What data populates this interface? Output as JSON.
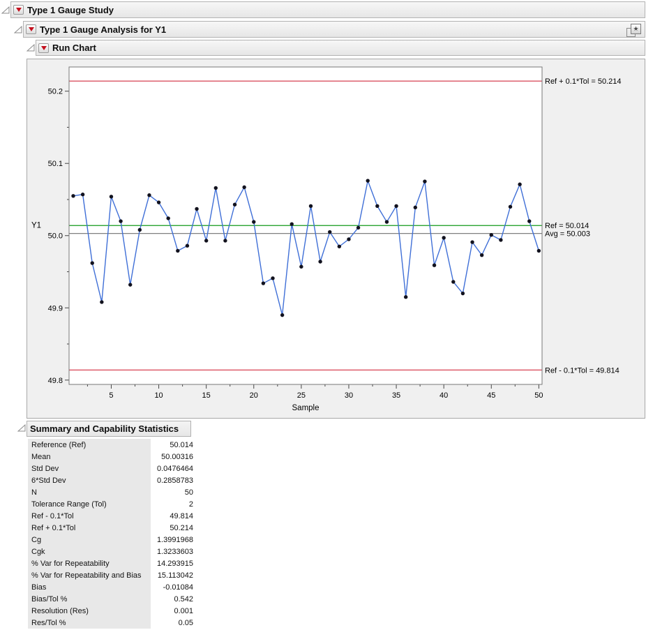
{
  "outlines": {
    "study": {
      "title": "Type 1 Gauge Study"
    },
    "analysis": {
      "title": "Type 1 Gauge Analysis for Y1"
    },
    "run_chart": {
      "title": "Run Chart"
    },
    "summary": {
      "title": "Summary and Capability Statistics"
    }
  },
  "icons": {
    "red_triangle_menu": "red-triangle-menu",
    "disclosure": "disclosure-triangle",
    "doc_star": "report-navigation-icon",
    "doc_star_glyph": "★"
  },
  "chart_data": {
    "type": "line",
    "title": "",
    "xlabel": "Sample",
    "ylabel": "Y1",
    "legend": "none",
    "grid": false,
    "xlim": [
      0.56,
      50.34
    ],
    "ylim": [
      49.794,
      50.2335
    ],
    "x": [
      1,
      2,
      3,
      4,
      5,
      6,
      7,
      8,
      9,
      10,
      11,
      12,
      13,
      14,
      15,
      16,
      17,
      18,
      19,
      20,
      21,
      22,
      23,
      24,
      25,
      26,
      27,
      28,
      29,
      30,
      31,
      32,
      33,
      34,
      35,
      36,
      37,
      38,
      39,
      40,
      41,
      42,
      43,
      44,
      45,
      46,
      47,
      48,
      49,
      50
    ],
    "values": [
      50.055,
      50.057,
      49.962,
      49.908,
      50.054,
      50.02,
      49.932,
      50.008,
      50.056,
      50.046,
      50.024,
      49.979,
      49.986,
      50.037,
      49.993,
      50.066,
      49.993,
      50.043,
      50.067,
      50.019,
      49.934,
      49.941,
      49.89,
      50.016,
      49.957,
      50.041,
      49.964,
      50.005,
      49.985,
      49.995,
      50.011,
      50.076,
      50.041,
      50.019,
      50.041,
      49.915,
      50.039,
      50.075,
      49.959,
      49.997,
      49.936,
      49.92,
      49.991,
      49.973,
      50.001,
      49.994,
      50.04,
      50.071,
      50.02,
      49.979
    ],
    "ytick_labels": [
      "49.8",
      "49.9",
      "50.0",
      "50.1",
      "50.2"
    ],
    "ytick_values": [
      49.8,
      49.9,
      50.0,
      50.1,
      50.2
    ],
    "ytick_minor": [
      49.85,
      49.95,
      50.05,
      50.15
    ],
    "xtick_labels": [
      "5",
      "10",
      "15",
      "20",
      "25",
      "30",
      "35",
      "40",
      "45",
      "50"
    ],
    "xtick_values": [
      5,
      10,
      15,
      20,
      25,
      30,
      35,
      40,
      45,
      50
    ],
    "xtick_minor": [
      2.5,
      7.5,
      12.5,
      17.5,
      22.5,
      27.5,
      32.5,
      37.5,
      42.5,
      47.5
    ],
    "ref_lines": [
      {
        "label": "Ref + 0.1*Tol = 50.214",
        "value": 50.214,
        "color": "#d22d3f"
      },
      {
        "label": "Ref = 50.014",
        "value": 50.014,
        "color": "#13991a"
      },
      {
        "label": "Avg = 50.003",
        "value": 50.003,
        "color": "#7f7f7f"
      },
      {
        "label": "Ref - 0.1*Tol = 49.814",
        "value": 49.814,
        "color": "#d22d3f"
      }
    ],
    "colors": {
      "line": "#3f6fd7",
      "marker": "#12121e",
      "frame": "#777777",
      "tick": "#444444",
      "text": "#000000",
      "plot_bg": "#ffffff"
    }
  },
  "summary_table": {
    "rows": [
      {
        "label": "Reference (Ref)",
        "value": "50.014"
      },
      {
        "label": "Mean",
        "value": "50.00316"
      },
      {
        "label": "Std Dev",
        "value": "0.0476464"
      },
      {
        "label": "6*Std Dev",
        "value": "0.2858783"
      },
      {
        "label": "N",
        "value": "50"
      },
      {
        "label": "Tolerance Range (Tol)",
        "value": "2"
      },
      {
        "label": "Ref - 0.1*Tol",
        "value": "49.814"
      },
      {
        "label": "Ref + 0.1*Tol",
        "value": "50.214"
      },
      {
        "label": "Cg",
        "value": "1.3991968"
      },
      {
        "label": "Cgk",
        "value": "1.3233603"
      },
      {
        "label": "% Var for Repeatability",
        "value": "14.293915"
      },
      {
        "label": "% Var for Repeatability and Bias",
        "value": "15.113042"
      },
      {
        "label": "Bias",
        "value": "-0.01084"
      },
      {
        "label": "Bias/Tol %",
        "value": "0.542"
      },
      {
        "label": "Resolution (Res)",
        "value": "0.001"
      },
      {
        "label": "Res/Tol %",
        "value": "0.05"
      }
    ]
  }
}
